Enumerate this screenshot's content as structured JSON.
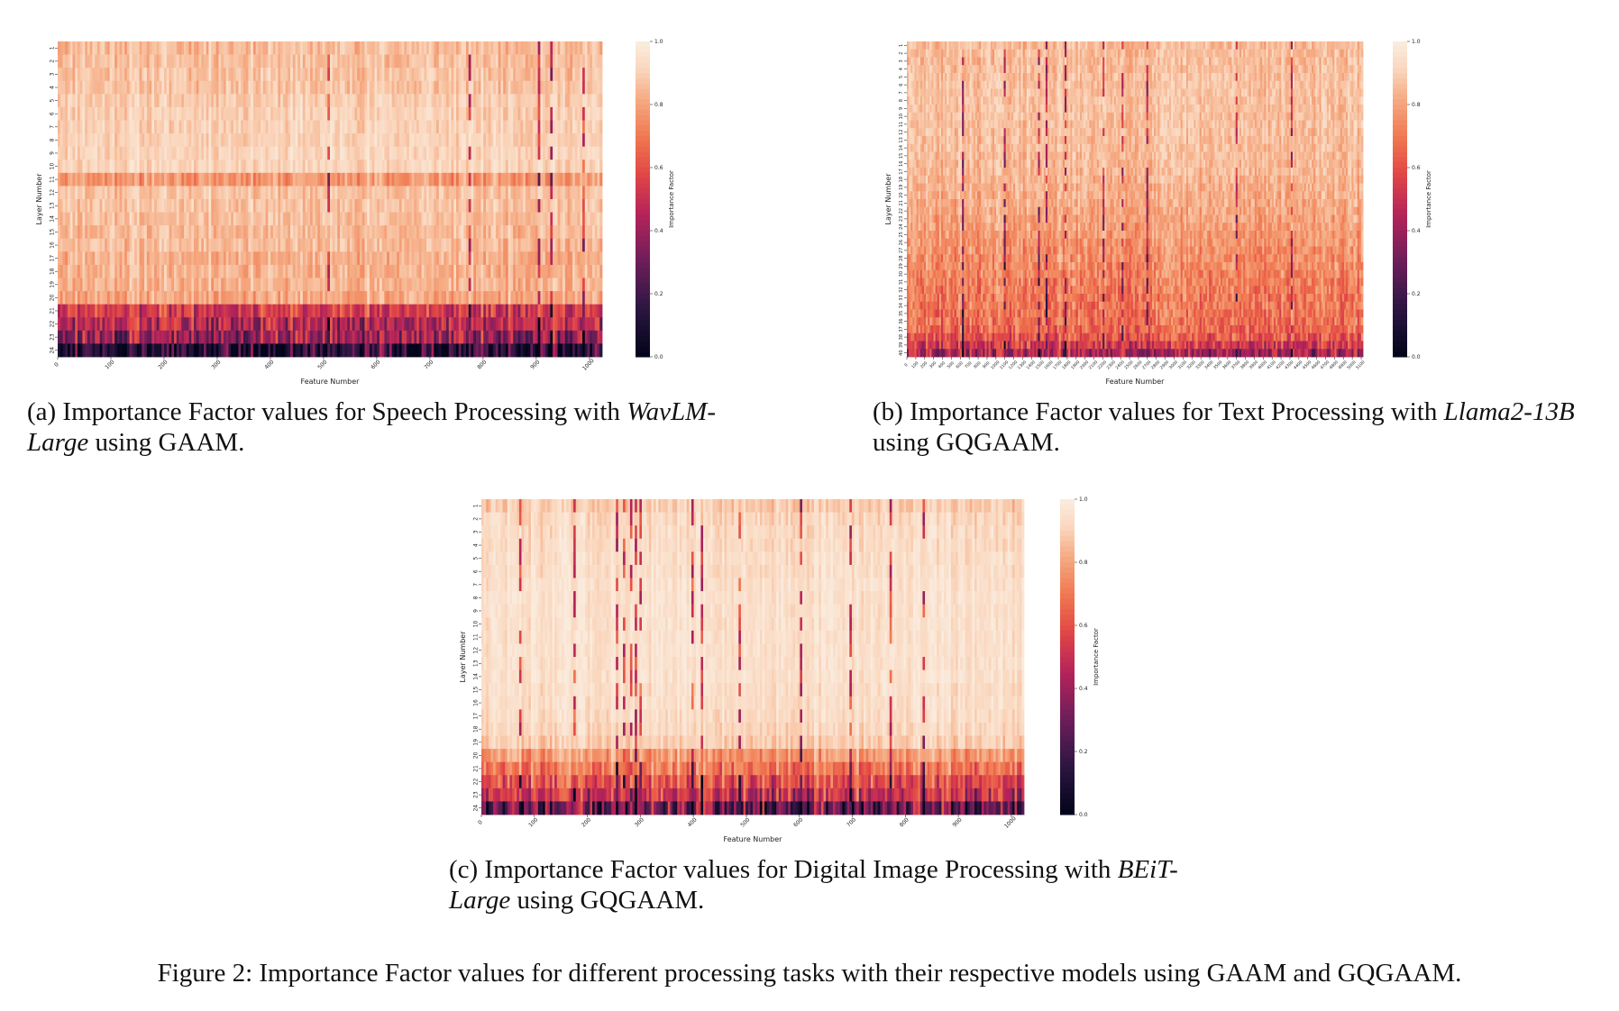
{
  "chart_data": [
    {
      "type": "heatmap",
      "id": "a",
      "title": "",
      "xlabel": "Feature Number",
      "ylabel": "Layer Number",
      "colorbar_label": "Importance Factor",
      "n_rows": 24,
      "n_cols": 1024,
      "row_labels": [
        "1",
        "2",
        "3",
        "4",
        "5",
        "6",
        "7",
        "8",
        "9",
        "10",
        "11",
        "12",
        "13",
        "14",
        "15",
        "16",
        "17",
        "18",
        "19",
        "20",
        "21",
        "22",
        "23",
        "24"
      ],
      "x_ticks": [
        "0",
        "100",
        "200",
        "300",
        "400",
        "500",
        "600",
        "700",
        "800",
        "900",
        "1000"
      ],
      "x_tick_values": [
        0,
        100,
        200,
        300,
        400,
        500,
        600,
        700,
        800,
        900,
        1000
      ],
      "cbar_ticks": [
        "1.0",
        "0.8",
        "0.6",
        "0.4",
        "0.2",
        "0.0"
      ],
      "cbar_tick_values": [
        1.0,
        0.8,
        0.6,
        0.4,
        0.2,
        0.0
      ],
      "layer_mean_importance": [
        0.86,
        0.87,
        0.88,
        0.88,
        0.9,
        0.91,
        0.91,
        0.91,
        0.92,
        0.92,
        0.78,
        0.88,
        0.88,
        0.87,
        0.86,
        0.86,
        0.84,
        0.84,
        0.84,
        0.82,
        0.55,
        0.45,
        0.4,
        0.12
      ],
      "value_range": [
        0.0,
        1.0
      ]
    },
    {
      "type": "heatmap",
      "id": "b",
      "title": "",
      "xlabel": "Feature Number",
      "ylabel": "Layer Number",
      "colorbar_label": "Importance Factor",
      "n_rows": 40,
      "n_cols": 5120,
      "row_labels": [
        "1",
        "2",
        "3",
        "4",
        "5",
        "6",
        "7",
        "8",
        "9",
        "10",
        "11",
        "12",
        "13",
        "14",
        "15",
        "16",
        "17",
        "18",
        "19",
        "20",
        "21",
        "22",
        "23",
        "24",
        "25",
        "26",
        "27",
        "28",
        "29",
        "30",
        "31",
        "32",
        "33",
        "34",
        "35",
        "36",
        "37",
        "38",
        "39",
        "40"
      ],
      "x_ticks": [
        "0",
        "100",
        "200",
        "300",
        "400",
        "500",
        "600",
        "700",
        "800",
        "900",
        "1000",
        "1100",
        "1200",
        "1300",
        "1400",
        "1500",
        "1600",
        "1700",
        "1800",
        "1900",
        "2000",
        "2100",
        "2200",
        "2300",
        "2400",
        "2500",
        "2600",
        "2700",
        "2800",
        "2900",
        "3000",
        "3100",
        "3200",
        "3300",
        "3400",
        "3500",
        "3600",
        "3700",
        "3800",
        "3900",
        "4000",
        "4100",
        "4200",
        "4300",
        "4400",
        "4500",
        "4600",
        "4700",
        "4800",
        "4900",
        "5000",
        "5100"
      ],
      "x_tick_values": [
        0,
        100,
        200,
        300,
        400,
        500,
        600,
        700,
        800,
        900,
        1000,
        1100,
        1200,
        1300,
        1400,
        1500,
        1600,
        1700,
        1800,
        1900,
        2000,
        2100,
        2200,
        2300,
        2400,
        2500,
        2600,
        2700,
        2800,
        2900,
        3000,
        3100,
        3200,
        3300,
        3400,
        3500,
        3600,
        3700,
        3800,
        3900,
        4000,
        4100,
        4200,
        4300,
        4400,
        4500,
        4600,
        4700,
        4800,
        4900,
        5000,
        5100
      ],
      "cbar_ticks": [
        "1.0",
        "0.8",
        "0.6",
        "0.4",
        "0.2",
        "0.0"
      ],
      "cbar_tick_values": [
        1.0,
        0.8,
        0.6,
        0.4,
        0.2,
        0.0
      ],
      "layer_mean_importance": [
        0.86,
        0.86,
        0.86,
        0.86,
        0.87,
        0.87,
        0.87,
        0.87,
        0.87,
        0.87,
        0.87,
        0.87,
        0.86,
        0.86,
        0.86,
        0.85,
        0.85,
        0.84,
        0.83,
        0.83,
        0.82,
        0.81,
        0.8,
        0.79,
        0.78,
        0.77,
        0.76,
        0.75,
        0.74,
        0.73,
        0.72,
        0.71,
        0.7,
        0.7,
        0.69,
        0.68,
        0.66,
        0.62,
        0.52,
        0.42
      ],
      "value_range": [
        0.0,
        1.0
      ]
    },
    {
      "type": "heatmap",
      "id": "c",
      "title": "",
      "xlabel": "Feature Number",
      "ylabel": "Layer Number",
      "colorbar_label": "Importance Factor",
      "n_rows": 24,
      "n_cols": 1024,
      "row_labels": [
        "1",
        "2",
        "3",
        "4",
        "5",
        "6",
        "7",
        "8",
        "9",
        "10",
        "11",
        "12",
        "13",
        "14",
        "15",
        "16",
        "17",
        "18",
        "19",
        "20",
        "21",
        "22",
        "23",
        "24"
      ],
      "x_ticks": [
        "0",
        "100",
        "200",
        "300",
        "400",
        "500",
        "600",
        "700",
        "800",
        "900",
        "1000"
      ],
      "x_tick_values": [
        0,
        100,
        200,
        300,
        400,
        500,
        600,
        700,
        800,
        900,
        1000
      ],
      "cbar_ticks": [
        "1.0",
        "0.8",
        "0.6",
        "0.4",
        "0.2",
        "0.0"
      ],
      "cbar_tick_values": [
        1.0,
        0.8,
        0.6,
        0.4,
        0.2,
        0.0
      ],
      "layer_mean_importance": [
        0.9,
        0.93,
        0.94,
        0.94,
        0.95,
        0.95,
        0.96,
        0.96,
        0.96,
        0.96,
        0.96,
        0.96,
        0.96,
        0.96,
        0.95,
        0.95,
        0.94,
        0.93,
        0.9,
        0.78,
        0.7,
        0.6,
        0.5,
        0.28
      ],
      "value_range": [
        0.0,
        1.0
      ]
    }
  ],
  "captions": {
    "a": {
      "prefix": "(a) Importance Factor values for Speech Processing with ",
      "model": "WavLM-Large",
      "suffix": " using GAAM."
    },
    "b": {
      "prefix": "(b) Importance Factor values for Text Processing with ",
      "model": "Llama2-13B",
      "suffix": " using GQGAAM."
    },
    "c": {
      "prefix": "(c) Importance Factor values for Digital Image Processing with ",
      "model": "BEiT-Large",
      "suffix": " using GQGAAM."
    }
  },
  "figure_caption": "Figure 2: Importance Factor values for different processing tasks with their respective models using GAAM and GQGAAM."
}
